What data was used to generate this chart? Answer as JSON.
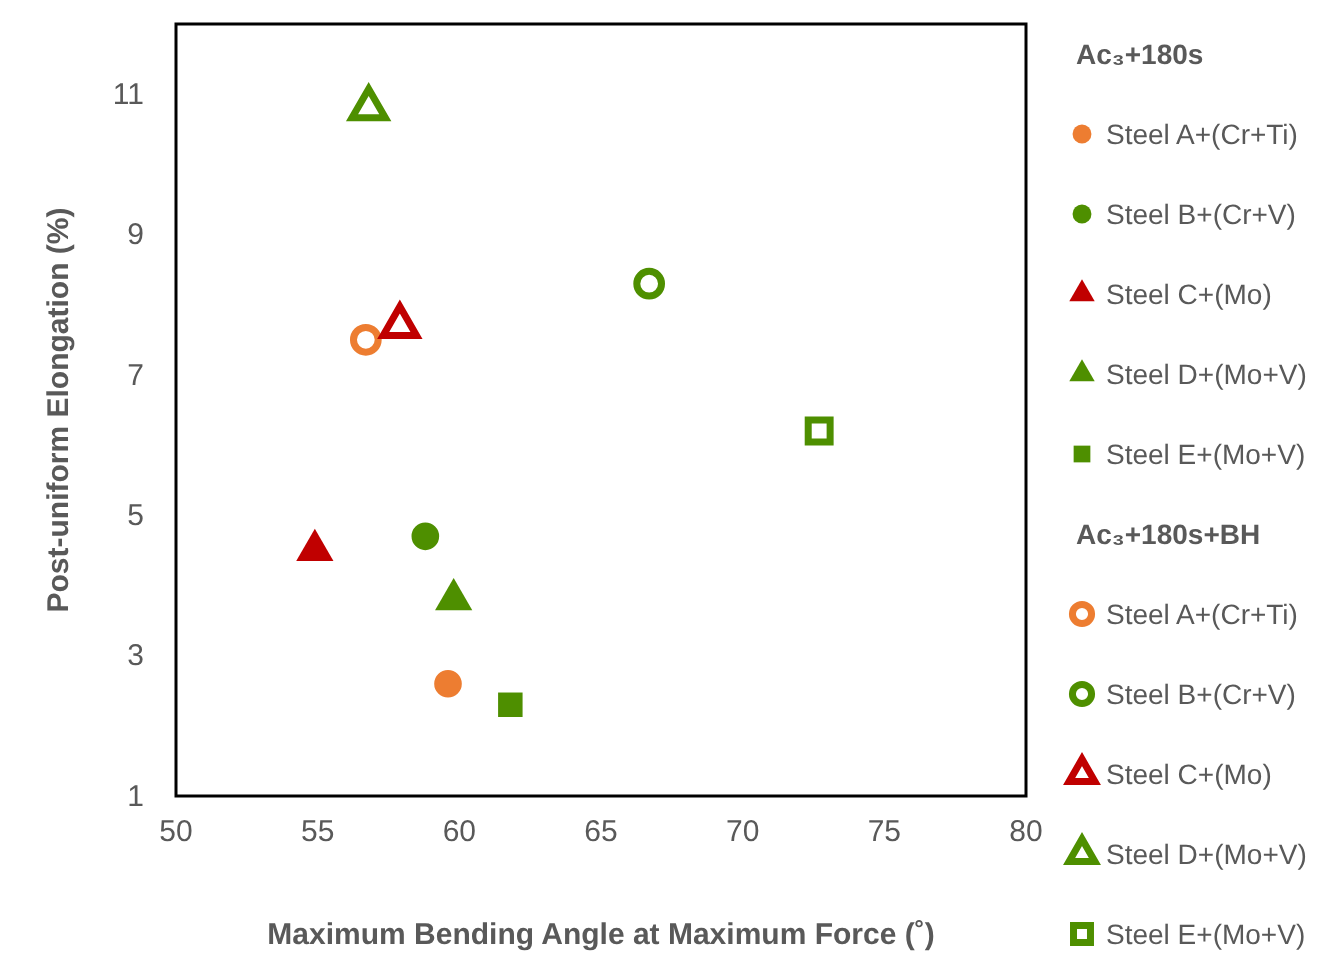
{
  "chart_data": {
    "type": "scatter",
    "xlabel": "Maximum Bending Angle at Maximum Force (˚)",
    "ylabel": "Post-uniform Elongation (%)",
    "xlim": [
      50,
      80
    ],
    "xticks": [
      50,
      55,
      60,
      65,
      70,
      75,
      80
    ],
    "ylim": [
      1,
      12
    ],
    "yticks": [
      1,
      3,
      5,
      7,
      9,
      11
    ],
    "grid": false,
    "legend": "right",
    "annotations": [
      "Ac₃+180s",
      "Ac₃+180s+BH"
    ],
    "series": [
      {
        "name": "Steel A+(Cr+Ti)",
        "color": "#ed7d31",
        "marker": "circle",
        "x": [
          59.6
        ],
        "values": [
          2.6
        ]
      },
      {
        "name": "Steel B+(Cr+V)",
        "color": "#4e8f00",
        "marker": "circle",
        "x": [
          58.8
        ],
        "values": [
          4.7
        ]
      },
      {
        "name": "Steel C+(Mo)",
        "color": "#c00000",
        "marker": "triangle",
        "x": [
          54.9
        ],
        "values": [
          4.5
        ]
      },
      {
        "name": "Steel D+(Mo+V)",
        "color": "#4e8f00",
        "marker": "triangle",
        "x": [
          59.8
        ],
        "values": [
          3.8
        ]
      },
      {
        "name": "Steel E+(Mo+V)",
        "color": "#4e8f00",
        "marker": "square",
        "x": [
          61.8
        ],
        "values": [
          2.3
        ]
      },
      {
        "name": "Steel A+(Cr+Ti)",
        "color": "#ed7d31",
        "marker": "circle",
        "x": [
          56.7
        ],
        "values": [
          7.5
        ]
      },
      {
        "name": "Steel B+(Cr+V)",
        "color": "#4e8f00",
        "marker": "circle",
        "x": [
          66.7
        ],
        "values": [
          8.3
        ]
      },
      {
        "name": "Steel C+(Mo)",
        "color": "#c00000",
        "marker": "triangle",
        "x": [
          57.9
        ],
        "values": [
          7.7
        ]
      },
      {
        "name": "Steel D+(Mo+V)",
        "color": "#4e8f00",
        "marker": "triangle",
        "x": [
          56.8
        ],
        "values": [
          10.8
        ]
      },
      {
        "name": "Steel E+(Mo+V)",
        "color": "#4e8f00",
        "marker": "square",
        "x": [
          72.7
        ],
        "values": [
          6.2
        ]
      }
    ]
  }
}
